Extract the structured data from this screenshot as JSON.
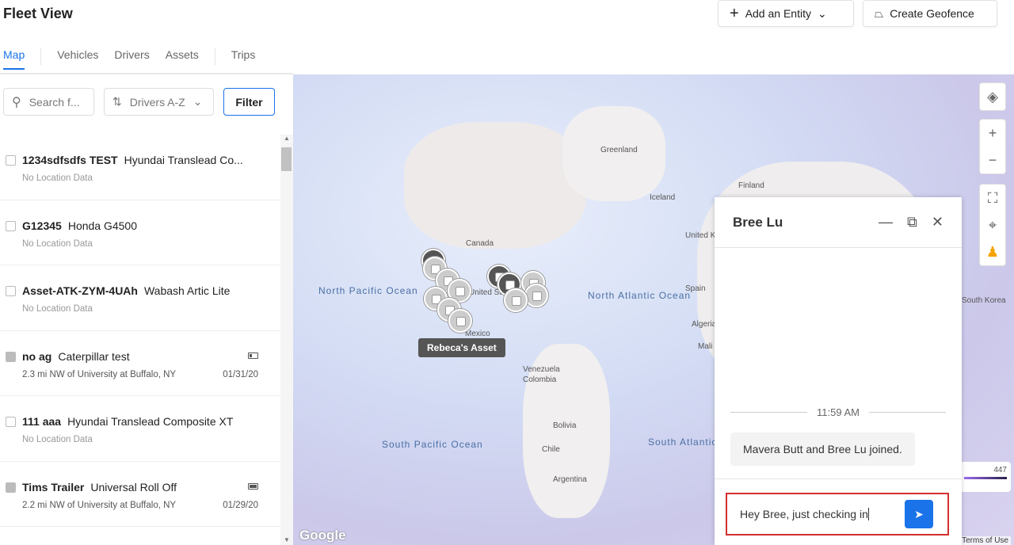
{
  "header": {
    "title": "Fleet View",
    "add_entity": "Add an Entity",
    "create_geofence": "Create Geofence"
  },
  "tabs": [
    "Map",
    "Vehicles",
    "Drivers",
    "Assets",
    "Trips"
  ],
  "controls": {
    "search_placeholder": "Search f...",
    "sort": "Drivers A-Z",
    "filter": "Filter"
  },
  "items": [
    {
      "id": "1234sdfsdfs TEST",
      "model": "Hyundai Translead Co...",
      "location": "No Location Data",
      "date": "",
      "battery": null
    },
    {
      "id": "G12345",
      "model": "Honda G4500",
      "location": "No Location Data",
      "date": "",
      "battery": null
    },
    {
      "id": "Asset-ATK-ZYM-4UAh",
      "model": "Wabash Artic Lite",
      "location": "No Location Data",
      "date": "",
      "battery": null
    },
    {
      "id": "no ag",
      "model": "Caterpillar test",
      "location": "2.3 mi NW of University at Buffalo, NY",
      "date": "01/31/20",
      "battery": "low"
    },
    {
      "id": "111 aaa",
      "model": "Hyundai Translead Composite XT",
      "location": "No Location Data",
      "date": "",
      "battery": null
    },
    {
      "id": "Tims Trailer",
      "model": "Universal Roll Off",
      "location": "2.2 mi NW of University at Buffalo, NY",
      "date": "01/29/20",
      "battery": "full"
    }
  ],
  "map": {
    "labels": [
      "Greenland",
      "Iceland",
      "Finland",
      "United Kingdom",
      "Canada",
      "United States",
      "Mexico",
      "Venezuela",
      "Colombia",
      "Bolivia",
      "Chile",
      "Argentina",
      "Spain",
      "Algeria",
      "Mali",
      "South Korea"
    ],
    "oceans": [
      "North Pacific Ocean",
      "North Atlantic Ocean",
      "South Pacific Ocean",
      "South Atlantic Ocean"
    ],
    "tooltip": "Rebeca's Asset",
    "legend_max": "447",
    "google": "Google",
    "terms": "Terms of Use"
  },
  "chat": {
    "name": "Bree Lu",
    "time": "11:59 AM",
    "system_message": "Mavera Butt and Bree Lu joined.",
    "input_value": "Hey Bree, just checking in",
    "accent": "#1a73e8"
  }
}
